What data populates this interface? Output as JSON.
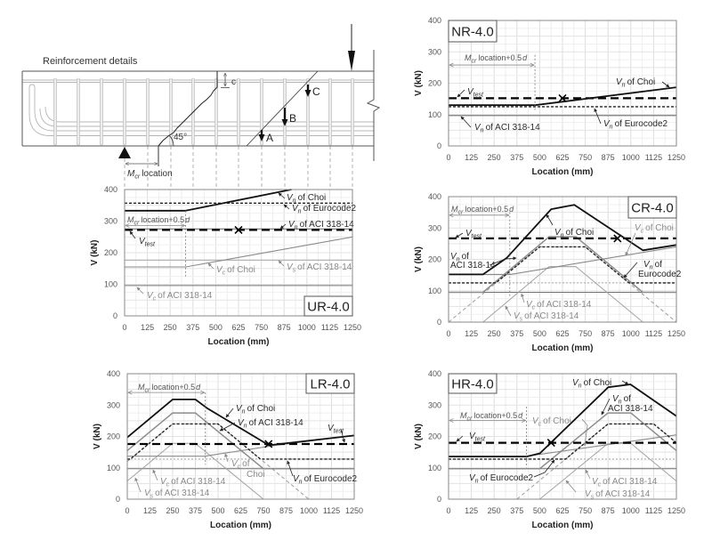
{
  "beam_diagram": {
    "title": "Reinforcement details",
    "crack_depth_label": "c",
    "crack_angle_label": "45°",
    "force_labels": [
      "A",
      "B",
      "C"
    ],
    "mcr_location_label": {
      "sym": "M",
      "sub": "cr",
      "text": "location"
    }
  },
  "chart_data": [
    {
      "type": "line",
      "title": "NR-4.0",
      "xlabel": "Location (mm)",
      "ylabel": "V (kN)",
      "xlim": [
        0,
        1250
      ],
      "ylim": [
        0,
        400
      ],
      "xticks": [
        0,
        125,
        250,
        375,
        500,
        625,
        750,
        875,
        1000,
        1125,
        1250
      ],
      "yticks": [
        0,
        100,
        200,
        300,
        400
      ],
      "grid": true,
      "mcr_location_plus_half_d": 474,
      "test_marker": [
        625,
        152
      ],
      "series": {
        "ec2_vrds": [
          [
            0,
            0
          ],
          [
            1250,
            0
          ]
        ],
        "vn_aci": [
          [
            0,
            97
          ],
          [
            1250,
            97
          ]
        ],
        "vn_ec2": [
          [
            0,
            125
          ],
          [
            1250,
            125
          ]
        ],
        "vtest": [
          [
            0,
            152
          ],
          [
            1250,
            152
          ]
        ],
        "vn_choi": [
          [
            0,
            130
          ],
          [
            474,
            130
          ],
          [
            1250,
            187
          ]
        ]
      },
      "annotations": [
        {
          "sym": "V",
          "sub": "n",
          "text": "of Choi"
        },
        {
          "sym": "V",
          "sub": "test"
        },
        {
          "sym": "V",
          "sub": "n",
          "text": "of ACI 318-14"
        },
        {
          "sym": "V",
          "sub": "n",
          "text": "of Eurocode2"
        }
      ],
      "mcr_label": {
        "sym": "M",
        "sub": "cr",
        "text": "location+0.5",
        "tail": "d"
      }
    },
    {
      "type": "line",
      "title": "UR-4.0",
      "xlabel": "Location (mm)",
      "ylabel": "V (kN)",
      "xlim": [
        0,
        1250
      ],
      "ylim": [
        0,
        400
      ],
      "xticks": [
        0,
        125,
        250,
        375,
        500,
        625,
        750,
        875,
        1000,
        1125,
        1250
      ],
      "yticks": [
        0,
        100,
        200,
        300,
        400
      ],
      "grid": true,
      "mcr_location_plus_half_d": 335,
      "test_marker": [
        625,
        272
      ],
      "series": {
        "ec2_vrds": [
          [
            0,
            0
          ],
          [
            1250,
            0
          ]
        ],
        "vc_aci": [
          [
            0,
            96
          ],
          [
            1250,
            96
          ]
        ],
        "vs_aci": [
          [
            0,
            177
          ],
          [
            1250,
            177
          ]
        ],
        "vn_aci": [
          [
            0,
            275
          ],
          [
            1250,
            275
          ]
        ],
        "vc_choi": [
          [
            0,
            155
          ],
          [
            335,
            155
          ],
          [
            1250,
            250
          ]
        ],
        "vn_ec2": [
          [
            0,
            357
          ],
          [
            1250,
            357
          ]
        ],
        "vtest": [
          [
            0,
            272
          ],
          [
            1250,
            272
          ]
        ],
        "vn_choi": [
          [
            0,
            333
          ],
          [
            335,
            333
          ],
          [
            915,
            400
          ]
        ]
      },
      "annotations": [
        {
          "sym": "V",
          "sub": "n",
          "text": "of Choi"
        },
        {
          "sym": "V",
          "sub": "n",
          "text": "of Eurocode2"
        },
        {
          "sym": "V",
          "sub": "n",
          "text": "of ACI 318-14"
        },
        {
          "sym": "V",
          "sub": "test"
        },
        {
          "sym": "V",
          "sub": "c",
          "text": "of Choi"
        },
        {
          "sym": "V",
          "sub": "s",
          "text": "of ACI 318-14"
        },
        {
          "sym": "V",
          "sub": "c",
          "text": "of ACI 318-14"
        }
      ],
      "mcr_label": {
        "sym": "M",
        "sub": "cr",
        "text": "location+0.5",
        "tail": "d"
      }
    },
    {
      "type": "line",
      "title": "CR-4.0",
      "xlabel": "Location (mm)",
      "ylabel": "V (kN)",
      "xlim": [
        0,
        1250
      ],
      "ylim": [
        0,
        400
      ],
      "xticks": [
        0,
        125,
        250,
        375,
        500,
        625,
        750,
        875,
        1000,
        1125,
        1250
      ],
      "yticks": [
        0,
        100,
        200,
        300,
        400
      ],
      "grid": true,
      "mcr_location_plus_half_d": 336,
      "test_marker": [
        927,
        267
      ],
      "series": {
        "ec2_vrdc": [
          [
            0,
            125
          ],
          [
            1250,
            125
          ]
        ],
        "ec2_vrds": [
          [
            0,
            0
          ],
          [
            500,
            240
          ],
          [
            750,
            240
          ],
          [
            1250,
            0
          ]
        ],
        "vc_aci": [
          [
            0,
            95
          ],
          [
            1250,
            95
          ]
        ],
        "vs_aci": [
          [
            189,
            0
          ],
          [
            552,
            177
          ],
          [
            698,
            177
          ],
          [
            1066,
            0
          ]
        ],
        "vn_aci": [
          [
            0,
            95
          ],
          [
            189,
            95
          ],
          [
            552,
            272
          ],
          [
            698,
            272
          ],
          [
            1066,
            95
          ],
          [
            1250,
            95
          ]
        ],
        "vc_choi": [
          [
            0,
            152
          ],
          [
            340,
            152
          ],
          [
            1250,
            240
          ]
        ],
        "vn_ec2": [
          [
            0,
            125
          ],
          [
            260,
            125
          ],
          [
            500,
            240
          ],
          [
            750,
            240
          ],
          [
            990,
            125
          ],
          [
            1250,
            125
          ]
        ],
        "vtest": [
          [
            0,
            267
          ],
          [
            1250,
            267
          ]
        ],
        "vn_choi": [
          [
            0,
            152
          ],
          [
            189,
            152
          ],
          [
            320,
            205
          ],
          [
            563,
            360
          ],
          [
            690,
            374
          ],
          [
            1066,
            229
          ],
          [
            1250,
            246
          ]
        ]
      },
      "annotations": [
        {
          "sym": "V",
          "sub": "n",
          "text": "of Choi"
        },
        {
          "sym": "V",
          "sub": "test"
        },
        {
          "sym": "V",
          "sub": "c",
          "text": "of Choi"
        },
        {
          "sym": "V",
          "sub": "n",
          "text": "of",
          "line2": "ACI 318-14"
        },
        {
          "sym": "V",
          "sub": "n",
          "text": "of",
          "line2": "Eurocode2"
        },
        {
          "sym": "V",
          "sub": "c",
          "text": "of ACI 318-14"
        },
        {
          "sym": "V",
          "sub": "s",
          "text": "of ACI 318-14"
        }
      ],
      "mcr_label": {
        "sym": "M",
        "sub": "cr",
        "text": "location+0.5",
        "tail": "d"
      }
    },
    {
      "type": "line",
      "title": "LR-4.0",
      "xlabel": "Location (mm)",
      "ylabel": "V (kN)",
      "xlim": [
        0,
        1250
      ],
      "ylim": [
        0,
        400
      ],
      "xticks": [
        0,
        125,
        250,
        375,
        500,
        625,
        750,
        875,
        1000,
        1125,
        1250
      ],
      "yticks": [
        0,
        100,
        200,
        300,
        400
      ],
      "grid": true,
      "mcr_location_plus_half_d": 430,
      "test_marker": [
        778,
        176
      ],
      "series": {
        "ec2_vrdc": [
          [
            0,
            128
          ],
          [
            1250,
            128
          ]
        ],
        "ec2_vrds": [
          [
            0,
            120
          ],
          [
            250,
            240
          ],
          [
            500,
            240
          ],
          [
            1000,
            0
          ],
          [
            1250,
            0
          ]
        ],
        "vc_aci": [
          [
            0,
            97
          ],
          [
            1250,
            97
          ]
        ],
        "vs_aci": [
          [
            0,
            58
          ],
          [
            250,
            178
          ],
          [
            375,
            178
          ],
          [
            750,
            0
          ]
        ],
        "vn_aci": [
          [
            0,
            155
          ],
          [
            250,
            275
          ],
          [
            375,
            275
          ],
          [
            750,
            97
          ],
          [
            1250,
            97
          ]
        ],
        "vc_choi": [
          [
            0,
            137
          ],
          [
            427,
            137
          ],
          [
            818,
            172
          ],
          [
            1250,
            203
          ]
        ],
        "vn_ec2": [
          [
            0,
            128
          ],
          [
            17,
            128
          ],
          [
            250,
            240
          ],
          [
            500,
            240
          ],
          [
            733,
            128
          ],
          [
            1250,
            128
          ]
        ],
        "vtest": [
          [
            0,
            176
          ],
          [
            1250,
            176
          ]
        ],
        "vn_choi": [
          [
            0,
            197
          ],
          [
            250,
            318
          ],
          [
            375,
            318
          ],
          [
            440,
            290
          ],
          [
            780,
            172
          ],
          [
            1250,
            203
          ]
        ]
      },
      "annotations": [
        {
          "sym": "V",
          "sub": "n",
          "text": "of Choi"
        },
        {
          "sym": "V",
          "sub": "n",
          "text": "of ACI 318-14"
        },
        {
          "sym": "V",
          "sub": "test"
        },
        {
          "sym": "V",
          "sub": "c",
          "text": "of",
          "line2": "Choi"
        },
        {
          "sym": "V",
          "sub": "c",
          "text": "of ACI 318-14"
        },
        {
          "sym": "V",
          "sub": "s",
          "text": "of ACI 318-14"
        },
        {
          "sym": "V",
          "sub": "n",
          "text": "of Eurocode2"
        }
      ],
      "mcr_label": {
        "sym": "M",
        "sub": "cr",
        "text": "location+0.5",
        "tail": "d"
      }
    },
    {
      "type": "line",
      "title": "HR-4.0",
      "xlabel": "Location (mm)",
      "ylabel": "V (kN)",
      "xlim": [
        0,
        1250
      ],
      "ylim": [
        0,
        400
      ],
      "xticks": [
        0,
        125,
        250,
        375,
        500,
        625,
        750,
        875,
        1000,
        1125,
        1250
      ],
      "yticks": [
        0,
        100,
        200,
        300,
        400
      ],
      "grid": true,
      "mcr_location_plus_half_d": 428,
      "test_marker": [
        563,
        180
      ],
      "series": {
        "ec2_vrdc": [
          [
            0,
            128
          ],
          [
            1250,
            128
          ]
        ],
        "ec2_vrds": [
          [
            0,
            0
          ],
          [
            375,
            0
          ],
          [
            875,
            240
          ],
          [
            1125,
            240
          ],
          [
            1250,
            180
          ]
        ],
        "vc_aci": [
          [
            0,
            97
          ],
          [
            1250,
            97
          ]
        ],
        "vs_aci": [
          [
            500,
            0
          ],
          [
            875,
            178
          ],
          [
            1000,
            178
          ],
          [
            1250,
            58
          ]
        ],
        "vn_aci": [
          [
            0,
            97
          ],
          [
            500,
            97
          ],
          [
            875,
            275
          ],
          [
            1000,
            275
          ],
          [
            1250,
            155
          ]
        ],
        "vc_choi": [
          [
            0,
            137
          ],
          [
            428,
            137
          ],
          [
            1250,
            205
          ]
        ],
        "vn_ec2": [
          [
            0,
            128
          ],
          [
            642,
            128
          ],
          [
            875,
            240
          ],
          [
            1125,
            240
          ],
          [
            1250,
            180
          ]
        ],
        "vtest": [
          [
            0,
            180
          ],
          [
            1250,
            180
          ]
        ],
        "vn_choi": [
          [
            0,
            136
          ],
          [
            428,
            136
          ],
          [
            501,
            146
          ],
          [
            876,
            357
          ],
          [
            998,
            366
          ],
          [
            1250,
            265
          ]
        ]
      },
      "annotations": [
        {
          "sym": "V",
          "sub": "n",
          "text": "of Choi"
        },
        {
          "sym": "V",
          "sub": "n",
          "text": "of",
          "line2": "ACI 318-14"
        },
        {
          "sym": "V",
          "sub": "c",
          "text": "of Choi"
        },
        {
          "sym": "V",
          "sub": "test"
        },
        {
          "sym": "V",
          "sub": "n",
          "text": "of Eurocode2"
        },
        {
          "sym": "V",
          "sub": "c",
          "text": "of ACI 318-14"
        },
        {
          "sym": "V",
          "sub": "s",
          "text": "of ACI 318-14"
        }
      ],
      "mcr_label": {
        "sym": "M",
        "sub": "cr",
        "text": "location+0.5",
        "tail": "d"
      }
    }
  ]
}
